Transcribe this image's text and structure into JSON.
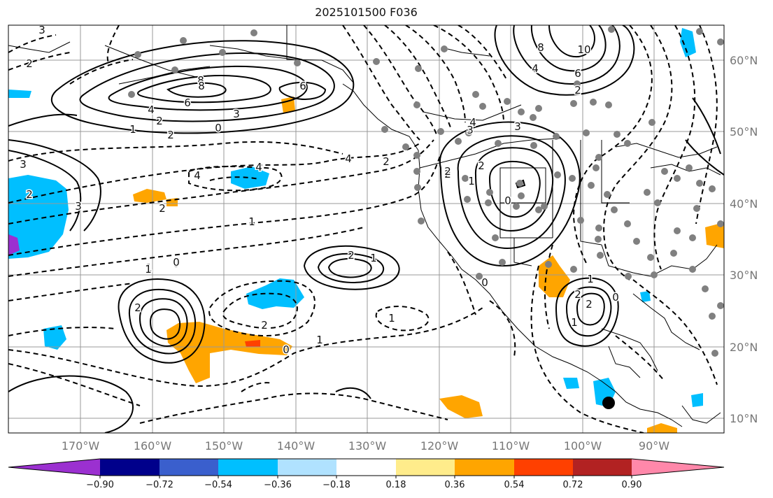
{
  "title": "2025101500 F036",
  "lon_labels": [
    "170°W",
    "160°W",
    "150°W",
    "140°W",
    "130°W",
    "120°W",
    "110°W",
    "100°W",
    "90°W"
  ],
  "lat_labels": [
    "60°N",
    "50°N",
    "40°N",
    "30°N",
    "20°N",
    "10°N"
  ],
  "colorbar": {
    "ticks": [
      "−0.90",
      "−0.72",
      "−0.54",
      "−0.36",
      "−0.18",
      "0.18",
      "0.36",
      "0.54",
      "0.72",
      "0.90"
    ],
    "colors": [
      "#9b30d0",
      "#00008b",
      "#3a5fcd",
      "#00bfff",
      "#b0e2ff",
      "#ffffff",
      "#ffec8b",
      "#ffa500",
      "#ff4000",
      "#b22222",
      "#ff88aa"
    ]
  },
  "contour_labels": [
    "3",
    "2",
    "3",
    "2",
    "1",
    "0",
    "2",
    "4",
    "6",
    "8",
    "3",
    "6",
    "4",
    "2",
    "0",
    "1",
    "2",
    "3",
    "4",
    "8",
    "10",
    "6",
    "4",
    "2",
    "4",
    "3",
    "2",
    "1",
    "0",
    "2",
    "3",
    "4",
    "2",
    "1",
    "0",
    "6",
    "8",
    "2",
    "1",
    "0",
    "2",
    "1",
    "1",
    "0",
    "2",
    "1",
    "0",
    "2",
    "1",
    "2",
    "0",
    "1",
    "2",
    "1"
  ]
}
